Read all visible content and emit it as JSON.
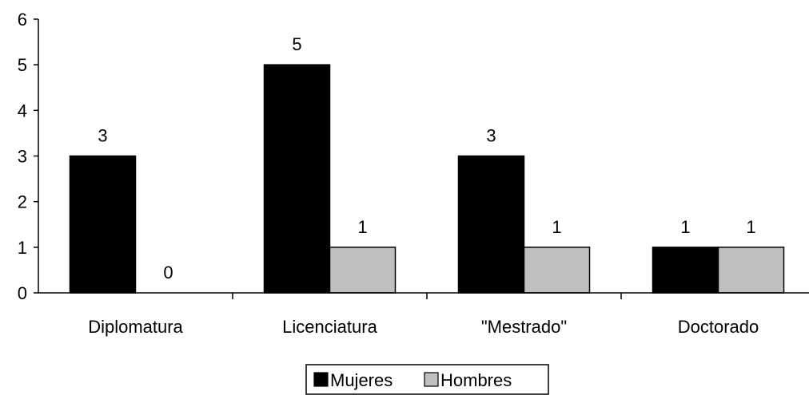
{
  "chart_data": {
    "type": "bar",
    "categories": [
      "Diplomatura",
      "Licenciatura",
      "\"Mestrado\"",
      "Doctorado"
    ],
    "series": [
      {
        "name": "Mujeres",
        "values": [
          3,
          5,
          3,
          1
        ],
        "color": "#000000"
      },
      {
        "name": "Hombres",
        "values": [
          0,
          1,
          1,
          1
        ],
        "color": "#c0c0c0"
      }
    ],
    "ylim": [
      0,
      6
    ],
    "yticks": [
      0,
      1,
      2,
      3,
      4,
      5,
      6
    ],
    "title": "",
    "xlabel": "",
    "ylabel": "",
    "grid": false,
    "legend_position": "bottom-center",
    "data_labels": true
  }
}
